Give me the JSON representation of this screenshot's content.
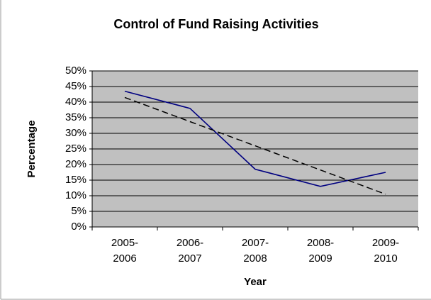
{
  "chart_data": {
    "type": "line",
    "title": "Control of Fund Raising Activities",
    "y_label": "Percentage",
    "x_label": "Year",
    "categories": [
      "2005-2006",
      "2006-2007",
      "2007-2008",
      "2008-2009",
      "2009-2010"
    ],
    "series": [
      {
        "color": "#000080",
        "values": [
          43.5,
          38,
          18.5,
          13,
          17.5
        ]
      },
      {
        "color": "#000000",
        "dashed": true,
        "values": [
          41.5,
          33.75,
          26,
          18.25,
          10.5
        ]
      }
    ],
    "ylim": [
      0,
      50
    ],
    "yticks": [
      {
        "value": 0,
        "label": "0%"
      },
      {
        "value": 5,
        "label": "5%"
      },
      {
        "value": 10,
        "label": "10%"
      },
      {
        "value": 15,
        "label": "15%"
      },
      {
        "value": 20,
        "label": "20%"
      },
      {
        "value": 25,
        "label": "25%"
      },
      {
        "value": 30,
        "label": "30%"
      },
      {
        "value": 35,
        "label": "35%"
      },
      {
        "value": 40,
        "label": "40%"
      },
      {
        "value": 45,
        "label": "45%"
      },
      {
        "value": 50,
        "label": "50%"
      }
    ],
    "grid": true,
    "plot_background": "#c0c0c0"
  }
}
